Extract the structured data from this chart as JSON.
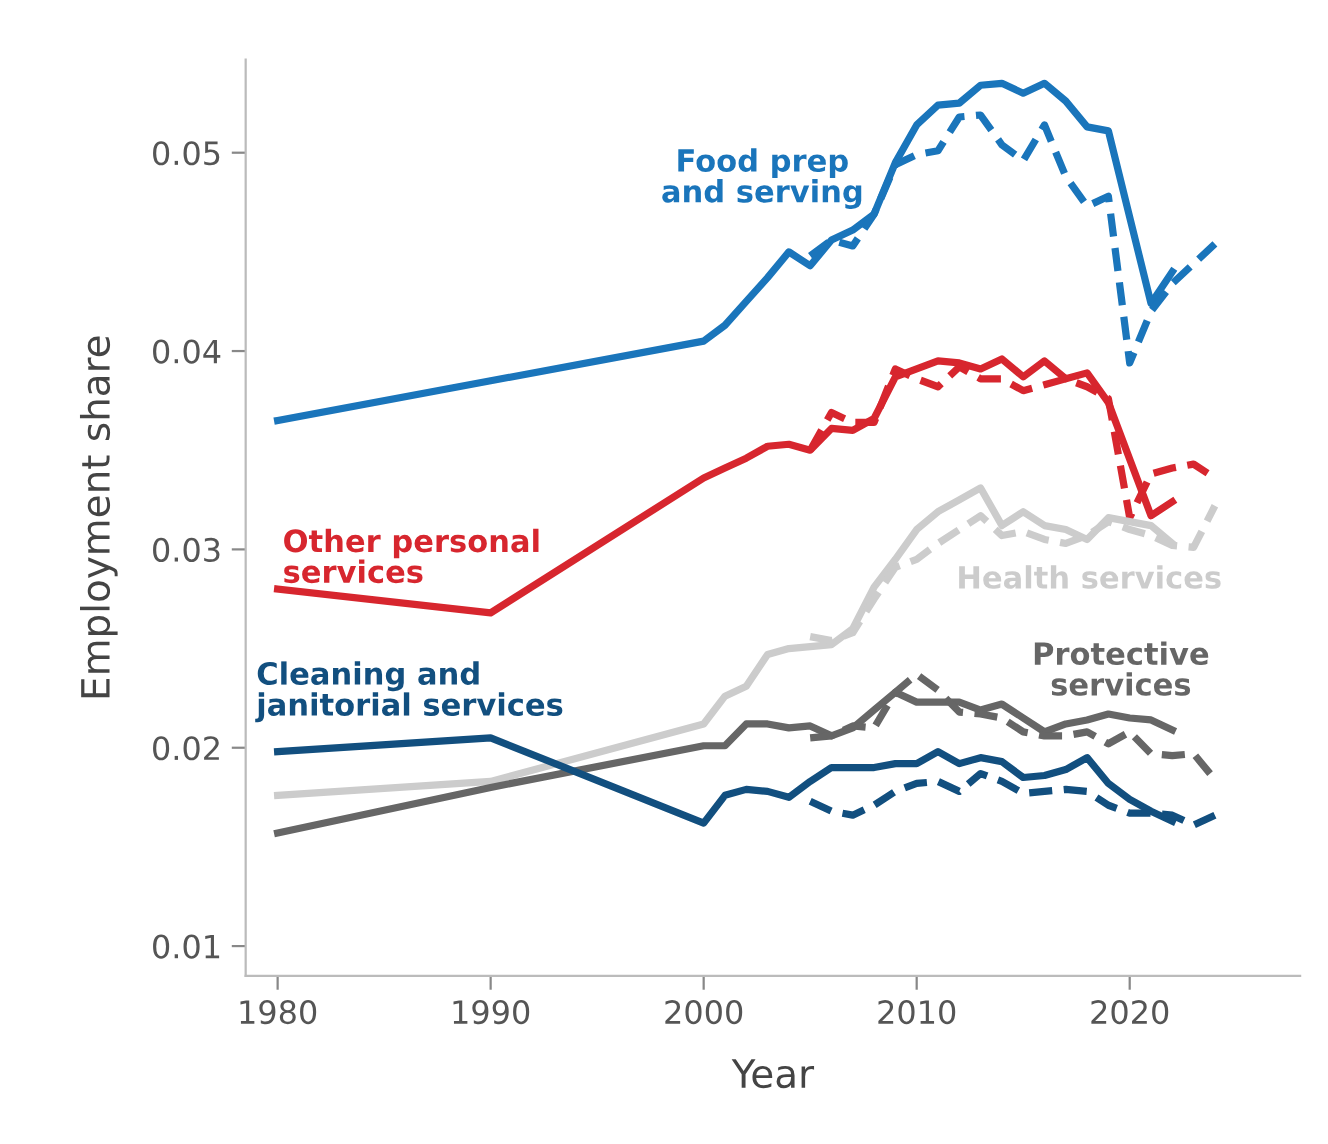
{
  "chart_data": {
    "type": "line",
    "xlabel": "Year",
    "ylabel": "Employment share",
    "xlim": [
      1978.5,
      2028
    ],
    "ylim": [
      0.0085,
      0.0547
    ],
    "xticks": [
      1980,
      1990,
      2000,
      2010,
      2020
    ],
    "yticks": [
      {
        "value": 0.01,
        "label": "0.01"
      },
      {
        "value": 0.02,
        "label": "0.02"
      },
      {
        "value": 0.03,
        "label": "0.03"
      },
      {
        "value": 0.04,
        "label": "0.04"
      },
      {
        "value": 0.05,
        "label": "0.05"
      }
    ],
    "grid": false,
    "legend": false,
    "marker": "none",
    "series": [
      {
        "name": "Food prep\nand serving",
        "color": "#1a75bb",
        "line_style": "solid",
        "x": [
          1980,
          1990,
          2000,
          2001,
          2002,
          2003,
          2004,
          2005,
          2006,
          2007,
          2008,
          2009,
          2010,
          2011,
          2012,
          2013,
          2014,
          2015,
          2016,
          2017,
          2018,
          2019,
          2021,
          2022
        ],
        "values": [
          0.0365,
          0.0385,
          0.0405,
          0.0413,
          0.0425,
          0.0437,
          0.045,
          0.0443,
          0.0456,
          0.0461,
          0.0469,
          0.0495,
          0.0514,
          0.0524,
          0.0525,
          0.0534,
          0.0535,
          0.053,
          0.0535,
          0.0526,
          0.0513,
          0.0511,
          0.0424,
          0.044
        ]
      },
      {
        "color": "#1a75bb",
        "line_style": "dashed",
        "x": [
          2005,
          2006,
          2007,
          2008,
          2009,
          2010,
          2011,
          2012,
          2013,
          2014,
          2015,
          2016,
          2017,
          2018,
          2019,
          2020,
          2021,
          2022,
          2023,
          2024
        ],
        "values": [
          0.0448,
          0.0456,
          0.0453,
          0.0469,
          0.0494,
          0.0499,
          0.0501,
          0.0518,
          0.0519,
          0.0504,
          0.0496,
          0.0514,
          0.0488,
          0.0473,
          0.0478,
          0.0394,
          0.042,
          0.0434,
          0.0444,
          0.0454
        ]
      },
      {
        "name": "Other personal\nservices",
        "color": "#d7262e",
        "line_style": "solid",
        "x": [
          1980,
          1990,
          2000,
          2001,
          2002,
          2003,
          2004,
          2005,
          2006,
          2007,
          2008,
          2009,
          2010,
          2011,
          2012,
          2013,
          2014,
          2015,
          2016,
          2017,
          2018,
          2019,
          2021,
          2022
        ],
        "values": [
          0.028,
          0.0268,
          0.0336,
          0.0341,
          0.0346,
          0.0352,
          0.0353,
          0.035,
          0.0361,
          0.036,
          0.0366,
          0.0387,
          0.0391,
          0.0395,
          0.0394,
          0.0391,
          0.0396,
          0.0387,
          0.0395,
          0.0386,
          0.0389,
          0.0374,
          0.0317,
          0.0324
        ]
      },
      {
        "color": "#d7262e",
        "line_style": "dashed",
        "x": [
          2005,
          2006,
          2007,
          2008,
          2009,
          2010,
          2011,
          2012,
          2013,
          2014,
          2015,
          2016,
          2017,
          2018,
          2019,
          2020,
          2021,
          2022,
          2023,
          2024
        ],
        "values": [
          0.035,
          0.0369,
          0.0364,
          0.0364,
          0.0391,
          0.0386,
          0.0382,
          0.0392,
          0.0386,
          0.0386,
          0.038,
          0.0383,
          0.0386,
          0.0382,
          0.0376,
          0.0316,
          0.0338,
          0.0341,
          0.0343,
          0.0336
        ]
      },
      {
        "name": "Health services",
        "color": "#cccccc",
        "line_style": "solid",
        "x": [
          1980,
          1990,
          2000,
          2001,
          2002,
          2003,
          2004,
          2005,
          2006,
          2007,
          2008,
          2009,
          2010,
          2011,
          2012,
          2013,
          2014,
          2015,
          2016,
          2017,
          2018,
          2019,
          2020,
          2021,
          2022
        ],
        "values": [
          0.0176,
          0.0183,
          0.0212,
          0.0226,
          0.0231,
          0.0247,
          0.025,
          0.0251,
          0.0252,
          0.026,
          0.0281,
          0.0295,
          0.031,
          0.0319,
          0.0325,
          0.0331,
          0.0312,
          0.0319,
          0.0312,
          0.031,
          0.0305,
          0.0316,
          0.0314,
          0.0312,
          0.0303
        ]
      },
      {
        "color": "#cccccc",
        "line_style": "dashed",
        "x": [
          2005,
          2006,
          2007,
          2008,
          2009,
          2010,
          2011,
          2012,
          2013,
          2014,
          2015,
          2016,
          2017,
          2018,
          2019,
          2020,
          2021,
          2022,
          2023,
          2024
        ],
        "values": [
          0.0256,
          0.0254,
          0.0258,
          0.0275,
          0.0291,
          0.0295,
          0.0303,
          0.031,
          0.0317,
          0.0307,
          0.0309,
          0.0305,
          0.0303,
          0.0307,
          0.0314,
          0.031,
          0.0307,
          0.0302,
          0.0301,
          0.0322
        ]
      },
      {
        "name": "Protective\nservices",
        "color": "#666666",
        "line_style": "solid",
        "x": [
          1980,
          1990,
          2000,
          2001,
          2002,
          2003,
          2004,
          2005,
          2006,
          2007,
          2008,
          2009,
          2010,
          2011,
          2012,
          2013,
          2014,
          2015,
          2016,
          2017,
          2018,
          2019,
          2020,
          2021,
          2022
        ],
        "values": [
          0.0157,
          0.018,
          0.0201,
          0.0201,
          0.0212,
          0.0212,
          0.021,
          0.0211,
          0.0206,
          0.021,
          0.0219,
          0.0228,
          0.0223,
          0.0223,
          0.0223,
          0.0219,
          0.0222,
          0.0215,
          0.0208,
          0.0212,
          0.0214,
          0.0217,
          0.0215,
          0.0214,
          0.0209
        ]
      },
      {
        "color": "#666666",
        "line_style": "dashed",
        "x": [
          2005,
          2006,
          2007,
          2008,
          2009,
          2010,
          2011,
          2012,
          2013,
          2014,
          2015,
          2016,
          2017,
          2018,
          2019,
          2020,
          2021,
          2022,
          2023,
          2024
        ],
        "values": [
          0.0205,
          0.0206,
          0.0211,
          0.021,
          0.0228,
          0.0237,
          0.0229,
          0.0218,
          0.0217,
          0.0215,
          0.0208,
          0.0206,
          0.0206,
          0.0208,
          0.0202,
          0.0208,
          0.0197,
          0.0196,
          0.0197,
          0.0184
        ]
      },
      {
        "name": "Cleaning and\njanitorial services",
        "color": "#124f7f",
        "line_style": "solid",
        "x": [
          1980,
          1990,
          2000,
          2001,
          2002,
          2003,
          2004,
          2005,
          2006,
          2007,
          2008,
          2009,
          2010,
          2011,
          2012,
          2013,
          2014,
          2015,
          2016,
          2017,
          2018,
          2019,
          2020,
          2021,
          2022
        ],
        "values": [
          0.0198,
          0.0205,
          0.0162,
          0.0176,
          0.0179,
          0.0178,
          0.0175,
          0.0183,
          0.019,
          0.019,
          0.019,
          0.0192,
          0.0192,
          0.0198,
          0.0192,
          0.0195,
          0.0193,
          0.0185,
          0.0186,
          0.0189,
          0.0195,
          0.0182,
          0.0174,
          0.0168,
          0.0163
        ]
      },
      {
        "color": "#124f7f",
        "line_style": "dashed",
        "x": [
          2005,
          2006,
          2007,
          2008,
          2009,
          2010,
          2011,
          2012,
          2013,
          2014,
          2015,
          2016,
          2017,
          2018,
          2019,
          2020,
          2021,
          2022,
          2023,
          2024
        ],
        "values": [
          0.0173,
          0.0168,
          0.0166,
          0.0171,
          0.0178,
          0.0182,
          0.0183,
          0.0178,
          0.0187,
          0.0183,
          0.0177,
          0.0178,
          0.0179,
          0.0178,
          0.0171,
          0.0167,
          0.0167,
          0.0166,
          0.0161,
          0.0166
        ]
      }
    ]
  }
}
